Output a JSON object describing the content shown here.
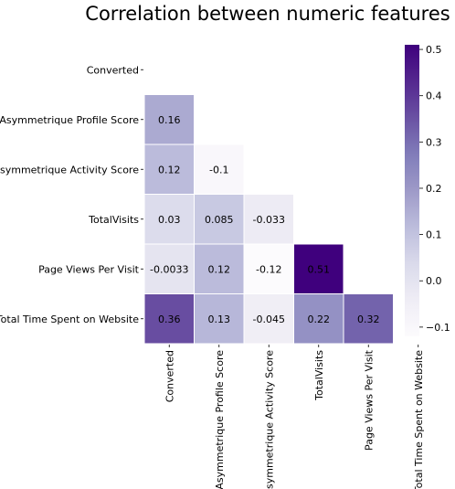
{
  "chart_data": {
    "type": "heatmap",
    "title": "Correlation between numeric features",
    "labels": [
      "Converted",
      "Asymmetrique Profile Score",
      "Asymmetrique Activity Score",
      "TotalVisits",
      "Page Views Per Visit",
      "Total Time Spent on Website"
    ],
    "mask": "upper-triangle-including-diagonal",
    "cells": [
      {
        "row": 1,
        "col": 0,
        "value": 0.16,
        "label": "0.16"
      },
      {
        "row": 2,
        "col": 0,
        "value": 0.12,
        "label": "0.12"
      },
      {
        "row": 2,
        "col": 1,
        "value": -0.1,
        "label": "-0.1"
      },
      {
        "row": 3,
        "col": 0,
        "value": 0.03,
        "label": "0.03"
      },
      {
        "row": 3,
        "col": 1,
        "value": 0.085,
        "label": "0.085"
      },
      {
        "row": 3,
        "col": 2,
        "value": -0.033,
        "label": "-0.033"
      },
      {
        "row": 4,
        "col": 0,
        "value": -0.0033,
        "label": "-0.0033"
      },
      {
        "row": 4,
        "col": 1,
        "value": 0.12,
        "label": "0.12"
      },
      {
        "row": 4,
        "col": 2,
        "value": -0.12,
        "label": "-0.12"
      },
      {
        "row": 4,
        "col": 3,
        "value": 0.51,
        "label": "0.51"
      },
      {
        "row": 5,
        "col": 0,
        "value": 0.36,
        "label": "0.36"
      },
      {
        "row": 5,
        "col": 1,
        "value": 0.13,
        "label": "0.13"
      },
      {
        "row": 5,
        "col": 2,
        "value": -0.045,
        "label": "-0.045"
      },
      {
        "row": 5,
        "col": 3,
        "value": 0.22,
        "label": "0.22"
      },
      {
        "row": 5,
        "col": 4,
        "value": 0.32,
        "label": "0.32"
      }
    ],
    "colormap": "Purples",
    "colorbar": {
      "min": -0.12,
      "max": 0.51,
      "ticks": [
        -0.1,
        0.0,
        0.1,
        0.2,
        0.3,
        0.4,
        0.5
      ],
      "tick_labels": [
        "−0.1",
        "0.0",
        "0.1",
        "0.2",
        "0.3",
        "0.4",
        "0.5"
      ],
      "placement": "right"
    },
    "grid": false
  }
}
